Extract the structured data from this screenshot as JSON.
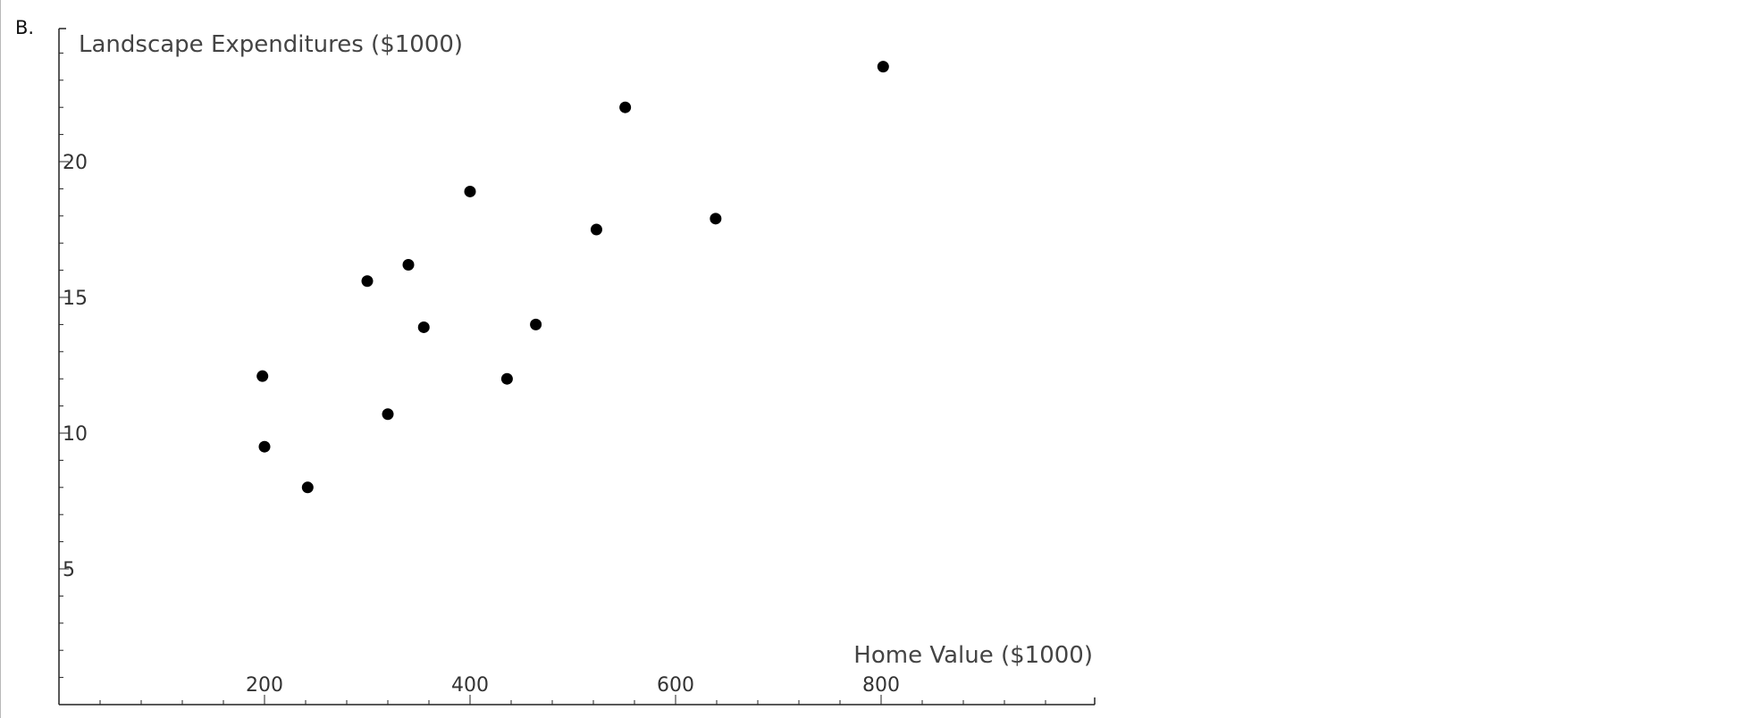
{
  "panel_label": "B.",
  "chart_data": {
    "type": "scatter",
    "title": "",
    "xlabel": "Home Value ($1000)",
    "ylabel": "Landscape Expenditures ($1000)",
    "xlim": [
      0,
      1000
    ],
    "ylim": [
      0,
      25
    ],
    "x_ticks": [
      200,
      400,
      600,
      800
    ],
    "y_ticks": [
      5,
      10,
      15,
      20
    ],
    "x_minor_step": 40,
    "y_minor_step": 1,
    "grid": false,
    "legend": "none",
    "marker_color": "#000000",
    "points": [
      {
        "x": 198,
        "y": 12.1
      },
      {
        "x": 200,
        "y": 9.5
      },
      {
        "x": 242,
        "y": 8.0
      },
      {
        "x": 300,
        "y": 15.6
      },
      {
        "x": 320,
        "y": 10.7
      },
      {
        "x": 340,
        "y": 16.2
      },
      {
        "x": 355,
        "y": 13.9
      },
      {
        "x": 400,
        "y": 18.9
      },
      {
        "x": 436,
        "y": 12.0
      },
      {
        "x": 464,
        "y": 14.0
      },
      {
        "x": 523,
        "y": 17.5
      },
      {
        "x": 551,
        "y": 22.0
      },
      {
        "x": 639,
        "y": 17.9
      },
      {
        "x": 802,
        "y": 23.5
      }
    ]
  }
}
